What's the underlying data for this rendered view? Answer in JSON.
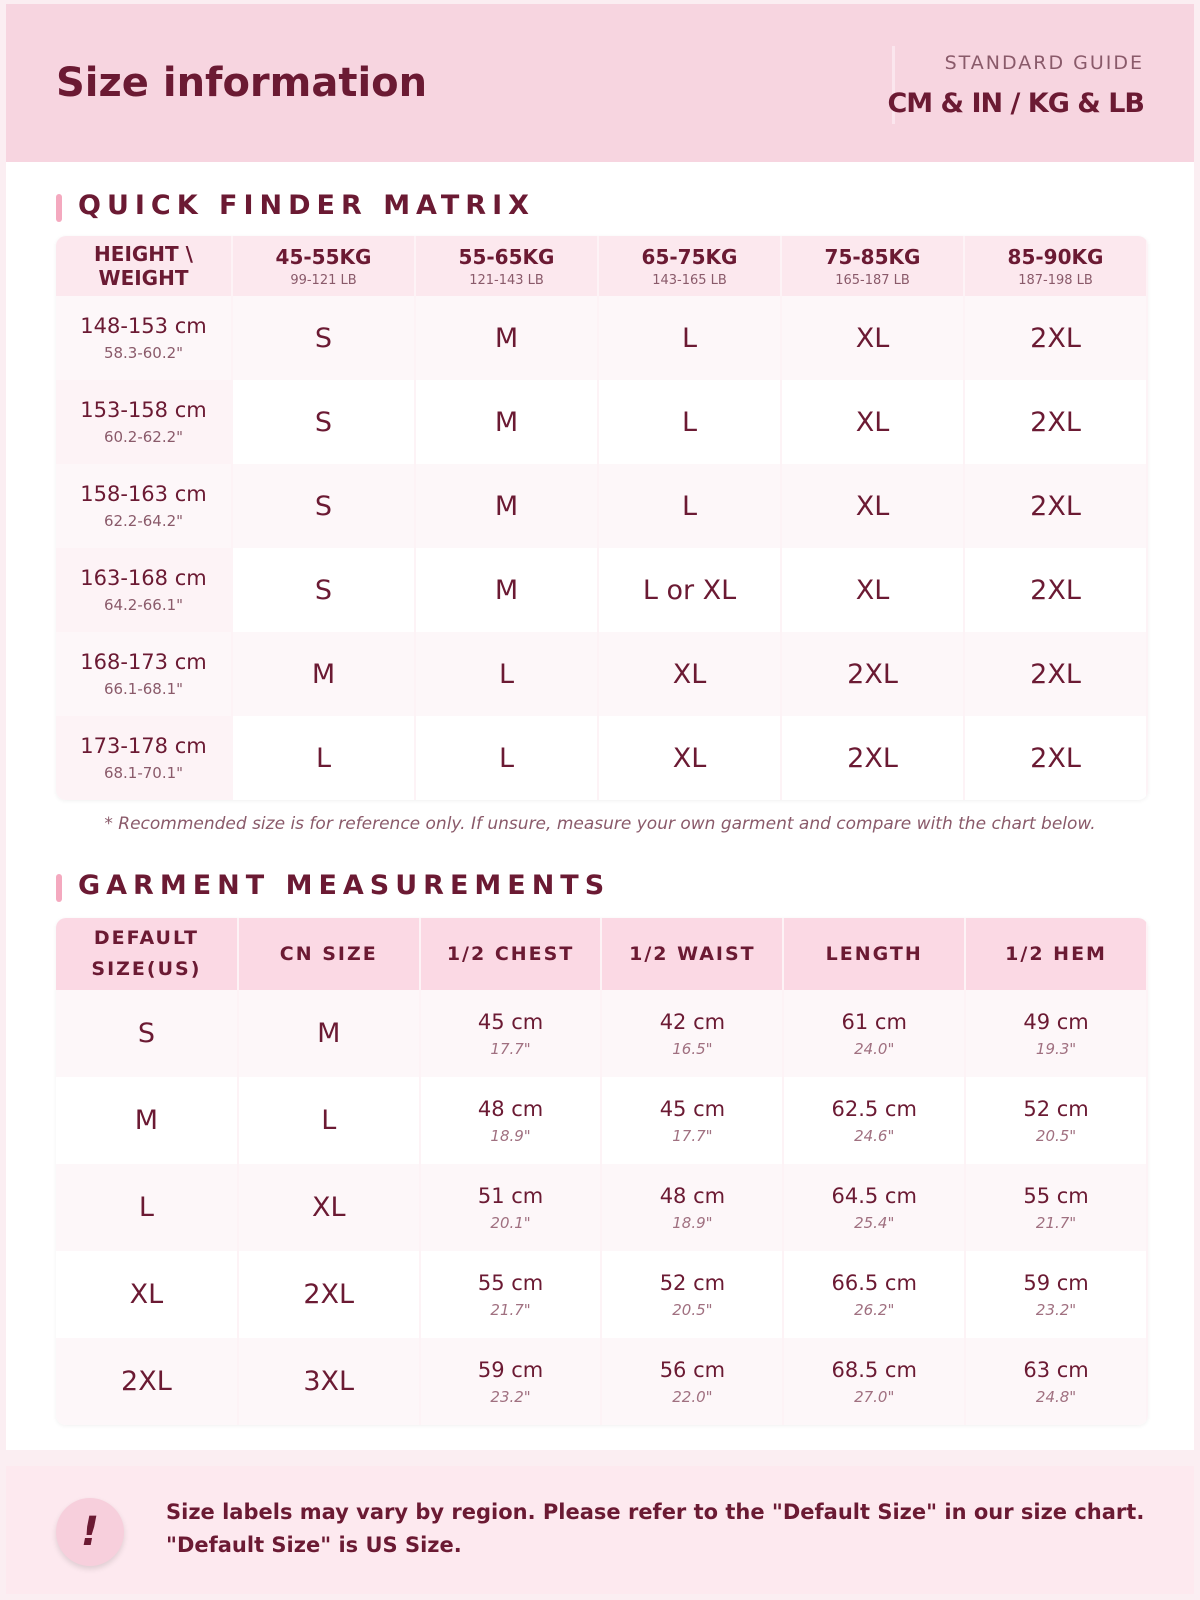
{
  "header": {
    "title": "Size information",
    "guide_label": "STANDARD GUIDE",
    "units": "CM & IN / KG & LB"
  },
  "quick_finder": {
    "title": "QUICK FINDER MATRIX",
    "corner": "HEIGHT \\ WEIGHT",
    "columns": [
      {
        "kg": "45-55KG",
        "lb": "99-121 LB"
      },
      {
        "kg": "55-65KG",
        "lb": "121-143 LB"
      },
      {
        "kg": "65-75KG",
        "lb": "143-165 LB"
      },
      {
        "kg": "75-85KG",
        "lb": "165-187 LB"
      },
      {
        "kg": "85-90KG",
        "lb": "187-198 LB"
      }
    ],
    "rows": [
      {
        "cm": "148-153 cm",
        "inch": "58.3-60.2\"",
        "sizes": [
          "S",
          "M",
          "L",
          "XL",
          "2XL"
        ]
      },
      {
        "cm": "153-158 cm",
        "inch": "60.2-62.2\"",
        "sizes": [
          "S",
          "M",
          "L",
          "XL",
          "2XL"
        ]
      },
      {
        "cm": "158-163 cm",
        "inch": "62.2-64.2\"",
        "sizes": [
          "S",
          "M",
          "L",
          "XL",
          "2XL"
        ]
      },
      {
        "cm": "163-168 cm",
        "inch": "64.2-66.1\"",
        "sizes": [
          "S",
          "M",
          "L or XL",
          "XL",
          "2XL"
        ]
      },
      {
        "cm": "168-173 cm",
        "inch": "66.1-68.1\"",
        "sizes": [
          "M",
          "L",
          "XL",
          "2XL",
          "2XL"
        ]
      },
      {
        "cm": "173-178 cm",
        "inch": "68.1-70.1\"",
        "sizes": [
          "L",
          "L",
          "XL",
          "2XL",
          "2XL"
        ]
      }
    ],
    "note": "* Recommended size is for reference only. If unsure, measure your own garment and compare with the chart below."
  },
  "garment": {
    "title": "GARMENT MEASUREMENTS",
    "headers": [
      "DEFAULT SIZE(US)",
      "CN SIZE",
      "1/2 CHEST",
      "1/2 WAIST",
      "LENGTH",
      "1/2 HEM"
    ],
    "rows": [
      {
        "us": "S",
        "cn": "M",
        "cells": [
          {
            "cm": "45 cm",
            "inch": "17.7\""
          },
          {
            "cm": "42 cm",
            "inch": "16.5\""
          },
          {
            "cm": "61 cm",
            "inch": "24.0\""
          },
          {
            "cm": "49 cm",
            "inch": "19.3\""
          }
        ]
      },
      {
        "us": "M",
        "cn": "L",
        "cells": [
          {
            "cm": "48 cm",
            "inch": "18.9\""
          },
          {
            "cm": "45 cm",
            "inch": "17.7\""
          },
          {
            "cm": "62.5 cm",
            "inch": "24.6\""
          },
          {
            "cm": "52 cm",
            "inch": "20.5\""
          }
        ]
      },
      {
        "us": "L",
        "cn": "XL",
        "cells": [
          {
            "cm": "51 cm",
            "inch": "20.1\""
          },
          {
            "cm": "48 cm",
            "inch": "18.9\""
          },
          {
            "cm": "64.5 cm",
            "inch": "25.4\""
          },
          {
            "cm": "55 cm",
            "inch": "21.7\""
          }
        ]
      },
      {
        "us": "XL",
        "cn": "2XL",
        "cells": [
          {
            "cm": "55 cm",
            "inch": "21.7\""
          },
          {
            "cm": "52 cm",
            "inch": "20.5\""
          },
          {
            "cm": "66.5 cm",
            "inch": "26.2\""
          },
          {
            "cm": "59 cm",
            "inch": "23.2\""
          }
        ]
      },
      {
        "us": "2XL",
        "cn": "3XL",
        "cells": [
          {
            "cm": "59 cm",
            "inch": "23.2\""
          },
          {
            "cm": "56 cm",
            "inch": "22.0\""
          },
          {
            "cm": "68.5 cm",
            "inch": "27.0\""
          },
          {
            "cm": "63 cm",
            "inch": "24.8\""
          }
        ]
      }
    ]
  },
  "notice": {
    "icon": "!",
    "text": "Size labels may vary by region. Please refer to the \"Default Size\" in our size chart. \"Default Size\" is US Size."
  }
}
